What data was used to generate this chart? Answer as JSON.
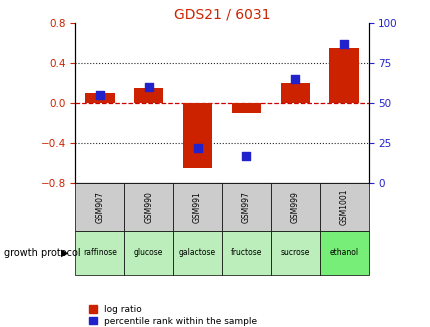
{
  "title": "GDS21 / 6031",
  "samples": [
    "GSM907",
    "GSM990",
    "GSM991",
    "GSM997",
    "GSM999",
    "GSM1001"
  ],
  "log_ratio": [
    0.1,
    0.15,
    -0.65,
    -0.1,
    0.2,
    0.55
  ],
  "percentile_rank": [
    55,
    60,
    22,
    17,
    65,
    87
  ],
  "growth_protocols": [
    "raffinose",
    "glucose",
    "galactose",
    "fructose",
    "sucrose",
    "ethanol"
  ],
  "protocol_colors": [
    "#bbeebb",
    "#bbeebb",
    "#bbeebb",
    "#bbeebb",
    "#bbeebb",
    "#77ee77"
  ],
  "sample_box_color": "#cccccc",
  "ylim_left": [
    -0.8,
    0.8
  ],
  "ylim_right": [
    0,
    100
  ],
  "yticks_left": [
    -0.8,
    -0.4,
    0.0,
    0.4,
    0.8
  ],
  "yticks_right": [
    0,
    25,
    50,
    75,
    100
  ],
  "bar_color": "#cc2200",
  "dot_color": "#2222cc",
  "zero_line_color": "#cc0000",
  "dotted_line_color": "#222222",
  "title_color": "#cc2200",
  "left_tick_color": "#cc2200",
  "right_tick_color": "#2222cc",
  "bar_width": 0.6,
  "dot_size": 28,
  "legend_lr_label": "log ratio",
  "legend_pr_label": "percentile rank within the sample",
  "fig_width": 4.31,
  "fig_height": 3.27,
  "dpi": 100
}
